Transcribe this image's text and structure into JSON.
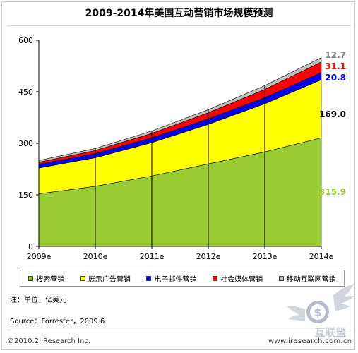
{
  "title": "2009-2014年美国互动营销市场规模预测",
  "note": "注：单位，亿美元",
  "source": "Source：Forrester，2009.6.",
  "copyright": "©2010.2 iResearch Inc.",
  "url": "www.iresearch.com.cn",
  "watermark_text": "互联盟",
  "colors": {
    "search": "#99cc33",
    "display": "#ffff00",
    "email": "#0000ee",
    "social": "#ff0000",
    "mobile": "#c0c0c0",
    "label_mobile": "#808080",
    "label_social": "#ff0000",
    "label_email": "#0000ff",
    "label_display": "#000000",
    "label_search": "#99cc33"
  },
  "chart_data": {
    "type": "area",
    "stacked": true,
    "categories": [
      "2009e",
      "2010e",
      "2011e",
      "2012e",
      "2013e",
      "2014e"
    ],
    "ylim": [
      0,
      600
    ],
    "yticks": [
      "0",
      "150",
      "300",
      "450",
      "600"
    ],
    "grid": false,
    "legend_position": "bottom",
    "series": [
      {
        "name": "搜索营销",
        "values": [
          153,
          175,
          205,
          240,
          275,
          315.9
        ]
      },
      {
        "name": "展示广告营销",
        "values": [
          75,
          83,
          97,
          115,
          140,
          169.0
        ]
      },
      {
        "name": "电子邮件营销",
        "values": [
          11,
          12,
          14,
          16,
          18,
          20.8
        ]
      },
      {
        "name": "社会媒体营销",
        "values": [
          6,
          9,
          13,
          18,
          24,
          31.1
        ]
      },
      {
        "name": "移动互联网营销",
        "values": [
          5,
          6,
          7,
          9,
          11,
          12.7
        ]
      }
    ],
    "end_labels": [
      "12.7",
      "31.1",
      "20.8",
      "169.0",
      "315.9"
    ]
  }
}
